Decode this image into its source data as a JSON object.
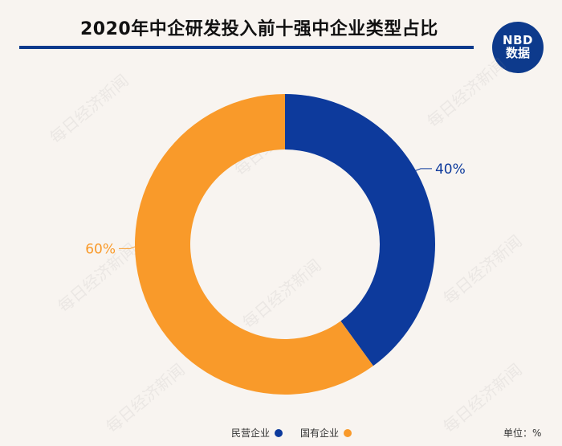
{
  "header": {
    "title": "2020年中企研发投入前十强中企业类型占比"
  },
  "logo": {
    "top": "NBD",
    "bottom": "数据"
  },
  "watermark": "每日经济新闻",
  "unit": "单位：%",
  "colors": {
    "private": "#0d3a9c",
    "state": "#f99a2a",
    "accent": "#0d3a8c"
  },
  "chart_data": {
    "type": "pie",
    "variant": "donut",
    "slices": [
      {
        "name": "民营企业",
        "value": 40,
        "label": "40%",
        "color": "#0d3a9c"
      },
      {
        "name": "国有企业",
        "value": 60,
        "label": "60%",
        "color": "#f99a2a"
      }
    ],
    "legend": "bottom"
  }
}
